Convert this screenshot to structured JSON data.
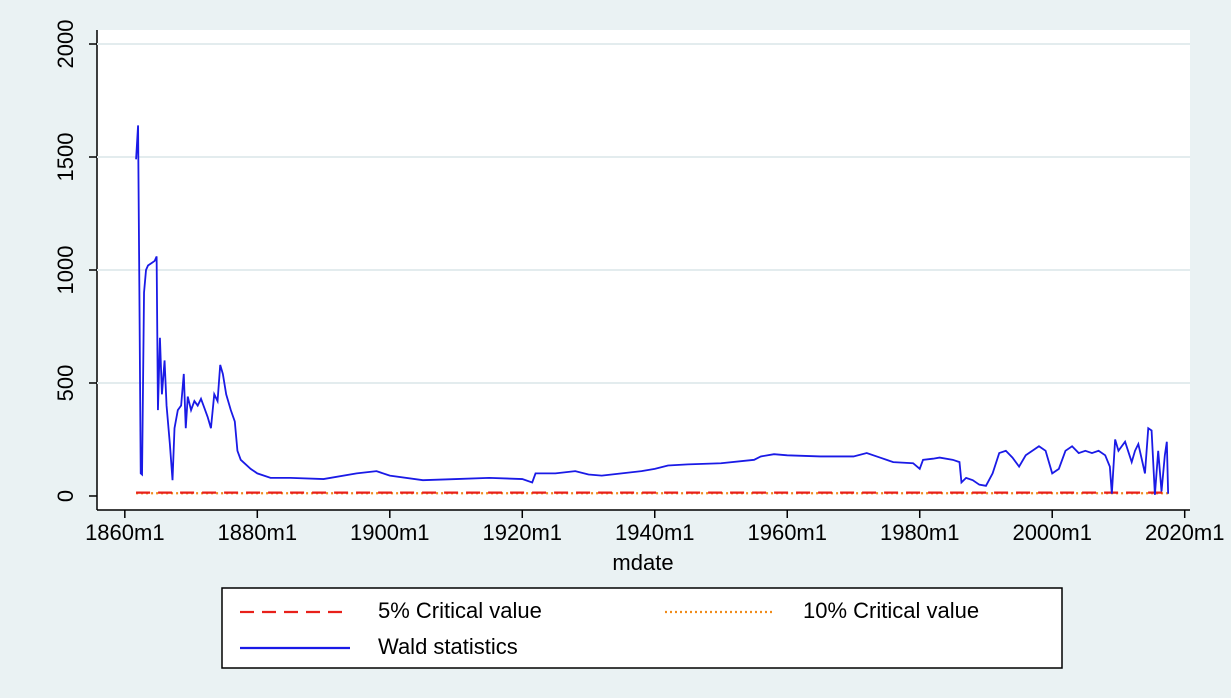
{
  "chart_data": {
    "type": "line",
    "x_label": "mdate",
    "xlim": [
      1855.8,
      2020.8
    ],
    "xticks": [
      {
        "value": 1860,
        "label": "1860m1"
      },
      {
        "value": 1880,
        "label": "1880m1"
      },
      {
        "value": 1900,
        "label": "1900m1"
      },
      {
        "value": 1920,
        "label": "1920m1"
      },
      {
        "value": 1940,
        "label": "1940m1"
      },
      {
        "value": 1960,
        "label": "1960m1"
      },
      {
        "value": 1980,
        "label": "1980m1"
      },
      {
        "value": 2000,
        "label": "2000m1"
      },
      {
        "value": 2020,
        "label": "2020m1"
      }
    ],
    "ylim": [
      -62,
      2062
    ],
    "yticks": [
      0,
      500,
      1000,
      1500,
      2000
    ],
    "grid": true,
    "series": [
      {
        "name": "5% Critical value",
        "color": "#e8201a",
        "dash": "dashed",
        "x": [
          1861.7,
          2017.5
        ],
        "values": [
          15,
          15
        ]
      },
      {
        "name": "10% Critical value",
        "color": "#f08c1a",
        "dash": "dotted",
        "x": [
          1861.7,
          2017.5
        ],
        "values": [
          12,
          12
        ]
      },
      {
        "name": "Wald statistics",
        "color": "#1a1ae6",
        "dash": "solid",
        "x": [
          1861.7,
          1862,
          1862.2,
          1862.4,
          1862.6,
          1862.9,
          1863.2,
          1863.5,
          1864,
          1864.5,
          1864.8,
          1865,
          1865.3,
          1865.6,
          1866,
          1866.3,
          1866.8,
          1867.2,
          1867.5,
          1868,
          1868.5,
          1868.9,
          1869.2,
          1869.5,
          1870,
          1870.5,
          1871,
          1871.5,
          1872,
          1872.5,
          1873,
          1873.5,
          1874,
          1874.4,
          1874.8,
          1875.3,
          1876,
          1876.6,
          1877,
          1877.5,
          1879,
          1880,
          1882,
          1885,
          1890,
          1895,
          1898,
          1900,
          1905,
          1910,
          1915,
          1920,
          1921.5,
          1922,
          1925,
          1928,
          1930,
          1932,
          1935,
          1938,
          1940,
          1942,
          1945,
          1950,
          1955,
          1956,
          1958,
          1960,
          1965,
          1970,
          1972,
          1974,
          1976,
          1979,
          1980,
          1980.5,
          1982,
          1983,
          1985,
          1986,
          1986.3,
          1987,
          1988,
          1989,
          1990,
          1991,
          1992,
          1993,
          1994,
          1995,
          1996,
          1997,
          1998,
          1999,
          2000,
          2001,
          2002,
          2003,
          2004,
          2005,
          2006,
          2007,
          2008,
          2008.7,
          2009,
          2009.5,
          2010,
          2011,
          2012,
          2012.5,
          2013,
          2014,
          2014.5,
          2015,
          2015.5,
          2016,
          2016.5,
          2017,
          2017.3,
          2017.5
        ],
        "values": [
          1490,
          1640,
          900,
          100,
          95,
          900,
          1000,
          1020,
          1030,
          1040,
          1060,
          380,
          700,
          450,
          600,
          400,
          230,
          70,
          300,
          380,
          400,
          540,
          300,
          440,
          380,
          420,
          400,
          430,
          390,
          350,
          300,
          450,
          420,
          580,
          540,
          450,
          380,
          330,
          200,
          160,
          120,
          100,
          80,
          80,
          75,
          100,
          110,
          90,
          70,
          75,
          80,
          75,
          60,
          100,
          100,
          110,
          95,
          90,
          100,
          110,
          120,
          135,
          140,
          145,
          160,
          175,
          185,
          180,
          175,
          175,
          190,
          170,
          150,
          145,
          120,
          160,
          165,
          170,
          160,
          150,
          60,
          80,
          70,
          50,
          45,
          100,
          190,
          200,
          170,
          130,
          180,
          200,
          220,
          200,
          100,
          120,
          200,
          220,
          190,
          200,
          190,
          200,
          180,
          130,
          10,
          250,
          200,
          240,
          150,
          200,
          230,
          100,
          300,
          290,
          5,
          200,
          20,
          180,
          240,
          10
        ]
      }
    ]
  }
}
